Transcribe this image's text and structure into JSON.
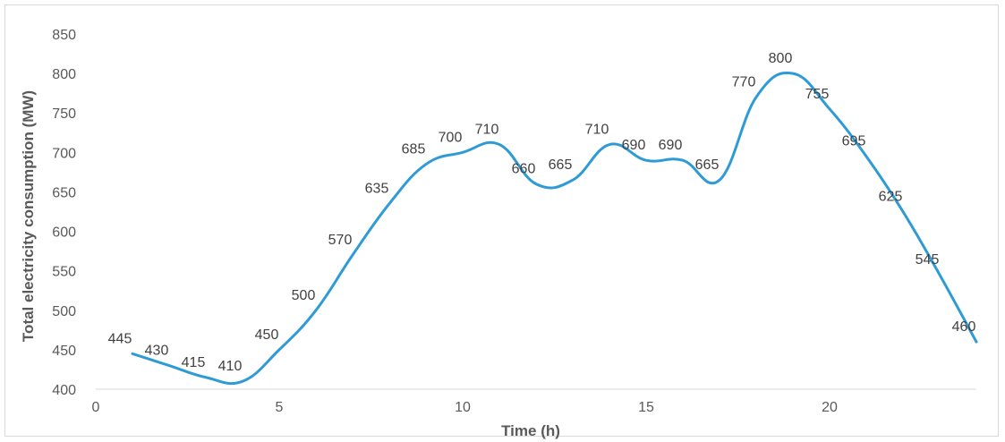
{
  "chart_data": {
    "type": "line",
    "title": "",
    "xlabel": "Time (h)",
    "ylabel": "Total electricity consumption (MW)",
    "xlim": [
      0,
      24
    ],
    "ylim": [
      400,
      850
    ],
    "x_ticks": [
      0,
      5,
      10,
      15,
      20
    ],
    "y_ticks": [
      400,
      450,
      500,
      550,
      600,
      650,
      700,
      750,
      800,
      850
    ],
    "grid": false,
    "legend": "none",
    "smooth": true,
    "line_color": "#2e9bd6",
    "series": [
      {
        "x": [
          1,
          2,
          3,
          4,
          5,
          6,
          7,
          8,
          9,
          10,
          11,
          12,
          13,
          14,
          15,
          16,
          17,
          18,
          19,
          20,
          21,
          22,
          23,
          24
        ],
        "values": [
          445,
          430,
          415,
          410,
          450,
          500,
          570,
          635,
          685,
          700,
          710,
          660,
          665,
          710,
          690,
          690,
          665,
          770,
          800,
          755,
          695,
          625,
          545,
          460
        ]
      }
    ]
  }
}
